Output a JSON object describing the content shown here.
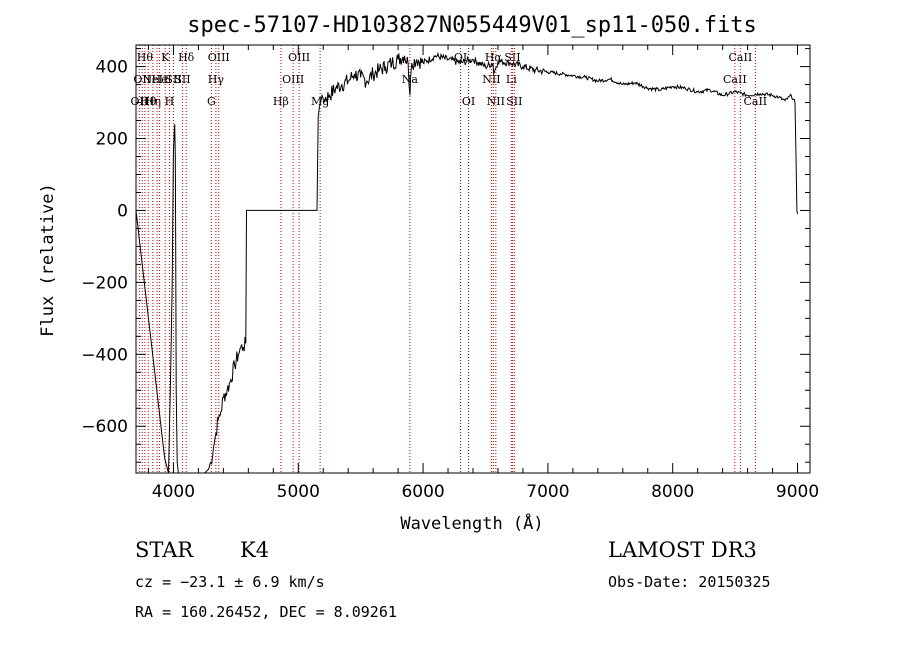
{
  "chart_data": {
    "type": "line",
    "title": "spec-57107-HD103827N055449V01_sp11-050.fits",
    "xlabel": "Wavelength (Å)",
    "ylabel": "Flux (relative)",
    "xlim": [
      3700,
      9100
    ],
    "ylim": [
      -730,
      460
    ],
    "xticks": [
      4000,
      5000,
      6000,
      7000,
      8000,
      9000
    ],
    "yticks": [
      -600,
      -400,
      -200,
      0,
      200,
      400
    ],
    "xtick_labels": [
      "4000",
      "5000",
      "6000",
      "7000",
      "8000",
      "9000"
    ],
    "ytick_labels": [
      "−600",
      "−400",
      "−200",
      "0",
      "200",
      "400"
    ],
    "series": [
      {
        "x": [
          3700,
          3720,
          3750,
          3780,
          3810,
          3840,
          3870,
          3900,
          3930,
          3960,
          3975,
          3990,
          4000,
          4005,
          4010,
          4015,
          4018,
          4022,
          4030,
          4040,
          4050,
          4100,
          4200,
          4250,
          4280,
          4300,
          4320,
          4340,
          4360,
          4380,
          4400,
          4430,
          4460,
          4490,
          4520,
          4540,
          4560,
          4580,
          4585,
          4600,
          4700,
          4800,
          4900,
          5000,
          5100,
          5150,
          5160,
          5170,
          5180,
          5190,
          5200,
          5250,
          5300,
          5350,
          5400,
          5450,
          5500,
          5550,
          5600,
          5650,
          5700,
          5750,
          5800,
          5850,
          5880,
          5895,
          5900,
          5910,
          5950,
          6000,
          6100,
          6200,
          6300,
          6400,
          6500,
          6560,
          6565,
          6600,
          6700,
          6800,
          6900,
          7000,
          7100,
          7200,
          7300,
          7400,
          7500,
          7600,
          7700,
          7800,
          7900,
          8000,
          8100,
          8200,
          8300,
          8400,
          8500,
          8600,
          8700,
          8800,
          8850,
          8900,
          8950,
          8980,
          8995,
          9000
        ],
        "y": [
          0,
          -60,
          -150,
          -240,
          -330,
          -420,
          -510,
          -600,
          -690,
          -730,
          -500,
          -200,
          160,
          210,
          240,
          150,
          -100,
          -500,
          -700,
          -730,
          -730,
          -730,
          -730,
          -730,
          -720,
          -700,
          -660,
          -620,
          -580,
          -560,
          -520,
          -500,
          -470,
          -430,
          -400,
          -380,
          -380,
          -370,
          0,
          0,
          0,
          0,
          0,
          0,
          0,
          0,
          260,
          290,
          300,
          320,
          310,
          320,
          340,
          350,
          360,
          380,
          370,
          360,
          380,
          390,
          400,
          410,
          420,
          430,
          410,
          320,
          370,
          410,
          420,
          410,
          430,
          420,
          410,
          420,
          400,
          410,
          380,
          415,
          410,
          400,
          390,
          385,
          380,
          375,
          370,
          360,
          365,
          350,
          355,
          340,
          335,
          345,
          340,
          330,
          335,
          320,
          330,
          320,
          325,
          320,
          315,
          305,
          320,
          300,
          0,
          -10
        ]
      }
    ],
    "lines": [
      {
        "w": 3727,
        "label": "OII",
        "row": 2
      },
      {
        "w": 3750,
        "label": "OII",
        "row": 1
      },
      {
        "w": 3771,
        "label": "Hθ",
        "row": 0
      },
      {
        "w": 3798,
        "label": "Hθ",
        "row": 2
      },
      {
        "w": 3835,
        "label": "Hη",
        "row": 2
      },
      {
        "w": 3869,
        "label": "NeIII",
        "row": 1
      },
      {
        "w": 3889,
        "label": "He",
        "row": 1
      },
      {
        "w": 3934,
        "label": "K",
        "row": 0
      },
      {
        "w": 3968,
        "label": "H",
        "row": 2
      },
      {
        "w": 4000,
        "label": "SII",
        "row": 1
      },
      {
        "w": 4072,
        "label": "SII",
        "row": 1
      },
      {
        "w": 4102,
        "label": "Hδ",
        "row": 0
      },
      {
        "w": 4304,
        "label": "G",
        "row": 2
      },
      {
        "w": 4340,
        "label": "Hγ",
        "row": 1
      },
      {
        "w": 4363,
        "label": "OIII",
        "row": 0
      },
      {
        "w": 4861,
        "label": "Hβ",
        "row": 2
      },
      {
        "w": 4959,
        "label": "OIII",
        "row": 1
      },
      {
        "w": 5007,
        "label": "OIII",
        "row": 0
      },
      {
        "w": 5175,
        "label": "Mg",
        "row": 2
      },
      {
        "w": 5894,
        "label": "Na",
        "row": 1
      },
      {
        "w": 6300,
        "label": "OI",
        "row": 0
      },
      {
        "w": 6364,
        "label": "OI",
        "row": 2
      },
      {
        "w": 6548,
        "label": "NII",
        "row": 1
      },
      {
        "w": 6563,
        "label": "Hα",
        "row": 0
      },
      {
        "w": 6583,
        "label": "NII",
        "row": 2
      },
      {
        "w": 6707,
        "label": "Li",
        "row": 1
      },
      {
        "w": 6716,
        "label": "SII",
        "row": 0
      },
      {
        "w": 6731,
        "label": "SII",
        "row": 2
      },
      {
        "w": 8498,
        "label": "CaII",
        "row": 1
      },
      {
        "w": 8542,
        "label": "CaII",
        "row": 0
      },
      {
        "w": 8662,
        "label": "CaII",
        "row": 2
      }
    ]
  },
  "info": {
    "class": "STAR",
    "subclass": "K4",
    "survey": "LAMOST DR3",
    "cz": "cz = −23.1 ± 6.9 km/s",
    "obs_date": "Obs-Date: 20150325",
    "radec": "RA = 160.26452, DEC =   8.09261"
  },
  "colors": {
    "axis": "#000000",
    "line_marker": "#cc0000"
  }
}
